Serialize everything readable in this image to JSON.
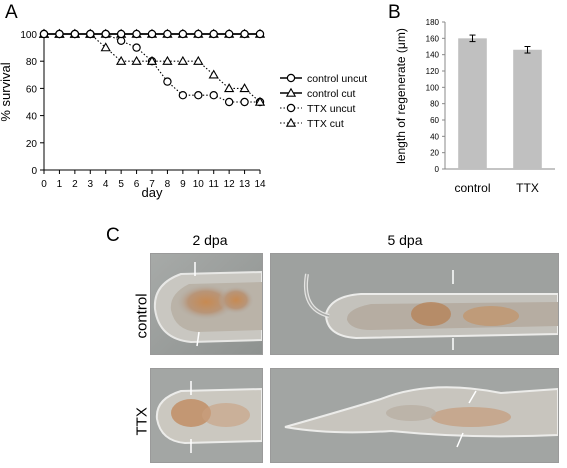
{
  "figure": {
    "panel_a_label": "A",
    "panel_b_label": "B",
    "panel_c_label": "C"
  },
  "chart_data": [
    {
      "type": "line",
      "panel": "A",
      "ylabel": "% survival",
      "xlabel": "day",
      "x": [
        0,
        1,
        2,
        3,
        4,
        5,
        6,
        7,
        8,
        9,
        10,
        11,
        12,
        13,
        14
      ],
      "ylim": [
        0,
        100
      ],
      "xlim": [
        0,
        14
      ],
      "yticks": [
        0,
        20,
        40,
        60,
        80,
        100
      ],
      "xticks": [
        0,
        1,
        2,
        3,
        4,
        5,
        6,
        7,
        8,
        9,
        10,
        11,
        12,
        13,
        14
      ],
      "legend_position": "right",
      "series": [
        {
          "name": "control uncut",
          "marker": "circle",
          "line": "solid",
          "values": [
            100,
            100,
            100,
            100,
            100,
            100,
            100,
            100,
            100,
            100,
            100,
            100,
            100,
            100,
            100
          ]
        },
        {
          "name": "control cut",
          "marker": "triangle",
          "line": "solid",
          "values": [
            100,
            100,
            100,
            100,
            100,
            100,
            100,
            100,
            100,
            100,
            100,
            100,
            100,
            100,
            100
          ]
        },
        {
          "name": "TTX uncut",
          "marker": "circle",
          "line": "dotted",
          "values": [
            100,
            100,
            100,
            100,
            100,
            95,
            90,
            80,
            65,
            55,
            55,
            55,
            50,
            50,
            50
          ]
        },
        {
          "name": "TTX cut",
          "marker": "triangle",
          "line": "dotted",
          "values": [
            100,
            100,
            100,
            100,
            90,
            80,
            80,
            80,
            80,
            80,
            80,
            70,
            60,
            60,
            50
          ]
        }
      ]
    },
    {
      "type": "bar",
      "panel": "B",
      "ylabel": "length of regenerate (μm)",
      "categories": [
        "control",
        "TTX"
      ],
      "values": [
        160,
        146
      ],
      "errors": [
        4,
        4
      ],
      "ylim": [
        0,
        180
      ],
      "yticks": [
        0,
        20,
        40,
        60,
        80,
        100,
        120,
        140,
        160,
        180
      ],
      "bar_color": "#c0c0c0"
    }
  ],
  "panel_c": {
    "col_headers": [
      "2 dpa",
      "5 dpa"
    ],
    "row_labels": [
      "control",
      "TTX"
    ]
  }
}
